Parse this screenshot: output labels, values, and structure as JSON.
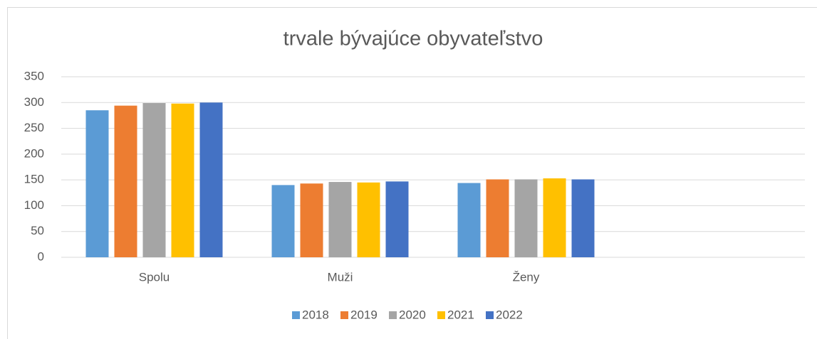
{
  "chart_data": {
    "type": "bar",
    "title": "trvale bývajúce obyvateľstvo",
    "categories": [
      "Spolu",
      "Muži",
      "Ženy",
      null
    ],
    "series": [
      {
        "name": "2018",
        "color": "#5b9bd5",
        "values": [
          285,
          140,
          144,
          null
        ]
      },
      {
        "name": "2019",
        "color": "#ed7d31",
        "values": [
          294,
          143,
          151,
          null
        ]
      },
      {
        "name": "2020",
        "color": "#a5a5a5",
        "values": [
          299,
          146,
          151,
          null
        ]
      },
      {
        "name": "2021",
        "color": "#ffc000",
        "values": [
          298,
          145,
          153,
          null
        ]
      },
      {
        "name": "2022",
        "color": "#4472c4",
        "values": [
          300,
          147,
          151,
          null
        ]
      }
    ],
    "ylim": [
      0,
      350
    ],
    "yticks": [
      0,
      50,
      100,
      150,
      200,
      250,
      300,
      350
    ],
    "grid": true,
    "legend": "bottom"
  }
}
